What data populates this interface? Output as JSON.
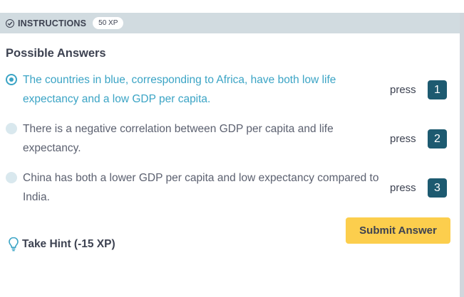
{
  "header": {
    "title": "INSTRUCTIONS",
    "xp": "50 XP"
  },
  "subtitle": "Possible Answers",
  "options": [
    {
      "text": "The countries in blue, corresponding to Africa, have both low life expectancy and a low GDP per capita.",
      "press": "press",
      "key": "1",
      "selected": true
    },
    {
      "text": "There is a negative correlation between GDP per capita and life expectancy.",
      "press": "press",
      "key": "2",
      "selected": false
    },
    {
      "text": "China has both a lower GDP per capita and low expectancy compared to India.",
      "press": "press",
      "key": "3",
      "selected": false
    }
  ],
  "submit_label": "Submit Answer",
  "hint_label": "Take Hint (-15 XP)",
  "colors": {
    "header_bg": "#d1dbe0",
    "selected": "#3ba4c5",
    "key_bg": "#1d5a70",
    "submit_bg": "#fcce4d",
    "text": "#3d4251"
  },
  "icons": {
    "header": "check-circle-icon",
    "hint": "lightbulb-icon"
  }
}
